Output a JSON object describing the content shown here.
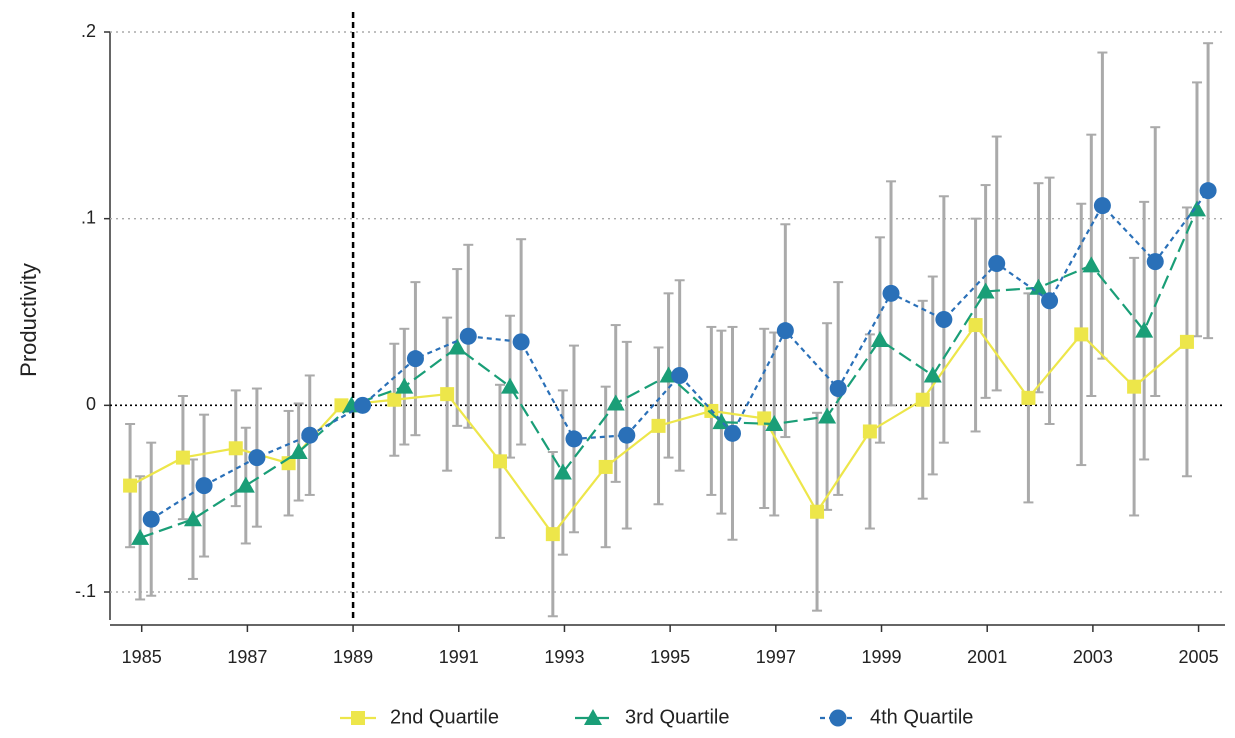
{
  "chart_data": {
    "type": "errorbar-line",
    "y_label": "Productivity",
    "x": [
      1985,
      1986,
      1987,
      1988,
      1989,
      1990,
      1991,
      1992,
      1993,
      1994,
      1995,
      1996,
      1997,
      1998,
      1999,
      2000,
      2001,
      2002,
      2003,
      2004,
      2005
    ],
    "xlim": [
      1984.4,
      2005.5
    ],
    "xticks": [
      1985,
      1987,
      1989,
      1991,
      1993,
      1995,
      1997,
      1999,
      2001,
      2003,
      2005
    ],
    "ylim": [
      -0.115,
      0.2
    ],
    "yticks": [
      {
        "value": -0.1,
        "label": "-.1"
      },
      0,
      {
        "value": 0.1,
        "label": ".1"
      },
      {
        "value": 0.2,
        "label": ".2"
      }
    ],
    "grid": true,
    "vline": 1989,
    "error_color": "#aaaaaa",
    "legend": "bottom",
    "series": [
      {
        "name": "2nd Quartile",
        "color": "#ede64a",
        "marker": "square",
        "dash": "none",
        "values": [
          -0.043,
          -0.028,
          -0.023,
          -0.031,
          0,
          0.003,
          0.006,
          -0.03,
          -0.069,
          -0.033,
          -0.011,
          -0.003,
          -0.007,
          -0.057,
          -0.014,
          0.003,
          0.043,
          0.004,
          0.038,
          0.01,
          0.034
        ],
        "errors": [
          0.033,
          0.033,
          0.031,
          0.028,
          0,
          0.03,
          0.041,
          0.041,
          0.044,
          0.043,
          0.042,
          0.045,
          0.048,
          0.053,
          0.052,
          0.053,
          0.057,
          0.056,
          0.07,
          0.069,
          0.072
        ]
      },
      {
        "name": "3rd Quartile",
        "color": "#1a9e77",
        "marker": "triangle",
        "dash": "14 6",
        "values": [
          -0.071,
          -0.061,
          -0.043,
          -0.025,
          0,
          0.01,
          0.031,
          0.01,
          -0.036,
          0.001,
          0.016,
          -0.009,
          -0.01,
          -0.006,
          0.035,
          0.016,
          0.061,
          0.063,
          0.075,
          0.04,
          0.105
        ],
        "errors": [
          0.033,
          0.032,
          0.031,
          0.026,
          0,
          0.031,
          0.042,
          0.038,
          0.044,
          0.042,
          0.044,
          0.049,
          0.049,
          0.05,
          0.055,
          0.053,
          0.057,
          0.056,
          0.07,
          0.069,
          0.068
        ]
      },
      {
        "name": "4th Quartile",
        "color": "#2a70b8",
        "marker": "circle",
        "dash": "5 4",
        "values": [
          -0.061,
          -0.043,
          -0.028,
          -0.016,
          0,
          0.025,
          0.037,
          0.034,
          -0.018,
          -0.016,
          0.016,
          -0.015,
          0.04,
          0.009,
          0.06,
          0.046,
          0.076,
          0.056,
          0.107,
          0.077,
          0.115
        ],
        "errors": [
          0.041,
          0.038,
          0.037,
          0.032,
          0,
          0.041,
          0.049,
          0.055,
          0.05,
          0.05,
          0.051,
          0.057,
          0.057,
          0.057,
          0.06,
          0.066,
          0.068,
          0.066,
          0.082,
          0.072,
          0.079
        ]
      }
    ]
  }
}
